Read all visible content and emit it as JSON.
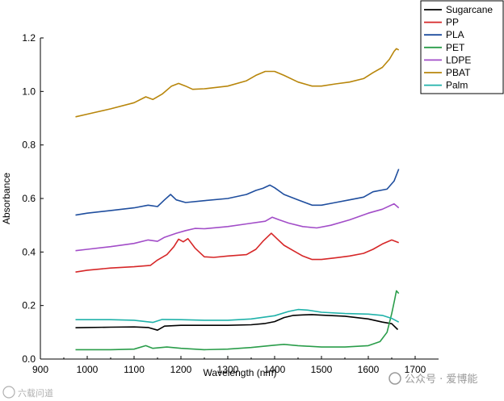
{
  "chart_data": {
    "type": "line",
    "title": "",
    "xlabel": "Wavelength (nm)",
    "ylabel": "Absorbance",
    "xlim": [
      900,
      1750
    ],
    "ylim": [
      0,
      1.2
    ],
    "xticks": [
      900,
      1000,
      1100,
      1200,
      1300,
      1400,
      1500,
      1600,
      1700
    ],
    "yticks": [
      0.0,
      0.2,
      0.4,
      0.6,
      0.8,
      1.0,
      1.2
    ],
    "grid": false,
    "legend_position": "top-right",
    "series": [
      {
        "name": "Sugarcane",
        "color": "#000000",
        "points": [
          [
            975,
            0.117
          ],
          [
            1000,
            0.118
          ],
          [
            1050,
            0.119
          ],
          [
            1100,
            0.12
          ],
          [
            1130,
            0.118
          ],
          [
            1150,
            0.108
          ],
          [
            1165,
            0.123
          ],
          [
            1200,
            0.126
          ],
          [
            1250,
            0.126
          ],
          [
            1300,
            0.126
          ],
          [
            1350,
            0.128
          ],
          [
            1380,
            0.133
          ],
          [
            1400,
            0.14
          ],
          [
            1420,
            0.155
          ],
          [
            1440,
            0.163
          ],
          [
            1460,
            0.165
          ],
          [
            1480,
            0.166
          ],
          [
            1500,
            0.164
          ],
          [
            1550,
            0.16
          ],
          [
            1600,
            0.15
          ],
          [
            1630,
            0.138
          ],
          [
            1650,
            0.132
          ],
          [
            1663,
            0.11
          ]
        ]
      },
      {
        "name": "PP",
        "color": "#d62728",
        "points": [
          [
            975,
            0.325
          ],
          [
            1000,
            0.332
          ],
          [
            1050,
            0.34
          ],
          [
            1100,
            0.345
          ],
          [
            1135,
            0.35
          ],
          [
            1150,
            0.37
          ],
          [
            1170,
            0.39
          ],
          [
            1185,
            0.42
          ],
          [
            1195,
            0.448
          ],
          [
            1205,
            0.438
          ],
          [
            1215,
            0.45
          ],
          [
            1230,
            0.415
          ],
          [
            1250,
            0.382
          ],
          [
            1270,
            0.38
          ],
          [
            1300,
            0.385
          ],
          [
            1340,
            0.39
          ],
          [
            1360,
            0.41
          ],
          [
            1375,
            0.44
          ],
          [
            1393,
            0.47
          ],
          [
            1405,
            0.45
          ],
          [
            1420,
            0.425
          ],
          [
            1440,
            0.405
          ],
          [
            1460,
            0.385
          ],
          [
            1480,
            0.372
          ],
          [
            1500,
            0.372
          ],
          [
            1530,
            0.378
          ],
          [
            1560,
            0.385
          ],
          [
            1590,
            0.395
          ],
          [
            1610,
            0.41
          ],
          [
            1630,
            0.43
          ],
          [
            1650,
            0.445
          ],
          [
            1665,
            0.435
          ]
        ]
      },
      {
        "name": "PLA",
        "color": "#1f4e9e",
        "points": [
          [
            975,
            0.538
          ],
          [
            1000,
            0.545
          ],
          [
            1050,
            0.555
          ],
          [
            1100,
            0.565
          ],
          [
            1130,
            0.575
          ],
          [
            1150,
            0.57
          ],
          [
            1165,
            0.595
          ],
          [
            1178,
            0.615
          ],
          [
            1190,
            0.595
          ],
          [
            1210,
            0.585
          ],
          [
            1250,
            0.592
          ],
          [
            1300,
            0.6
          ],
          [
            1340,
            0.615
          ],
          [
            1360,
            0.63
          ],
          [
            1375,
            0.638
          ],
          [
            1390,
            0.65
          ],
          [
            1400,
            0.64
          ],
          [
            1420,
            0.615
          ],
          [
            1450,
            0.595
          ],
          [
            1480,
            0.575
          ],
          [
            1500,
            0.575
          ],
          [
            1530,
            0.585
          ],
          [
            1560,
            0.595
          ],
          [
            1590,
            0.605
          ],
          [
            1610,
            0.625
          ],
          [
            1640,
            0.635
          ],
          [
            1655,
            0.665
          ],
          [
            1665,
            0.71
          ]
        ]
      },
      {
        "name": "PET",
        "color": "#2a9d4a",
        "points": [
          [
            975,
            0.035
          ],
          [
            1000,
            0.035
          ],
          [
            1050,
            0.035
          ],
          [
            1100,
            0.037
          ],
          [
            1125,
            0.05
          ],
          [
            1140,
            0.04
          ],
          [
            1170,
            0.045
          ],
          [
            1200,
            0.04
          ],
          [
            1250,
            0.035
          ],
          [
            1300,
            0.037
          ],
          [
            1350,
            0.043
          ],
          [
            1400,
            0.052
          ],
          [
            1420,
            0.055
          ],
          [
            1450,
            0.05
          ],
          [
            1500,
            0.045
          ],
          [
            1550,
            0.045
          ],
          [
            1600,
            0.05
          ],
          [
            1625,
            0.065
          ],
          [
            1640,
            0.1
          ],
          [
            1650,
            0.17
          ],
          [
            1656,
            0.22
          ],
          [
            1660,
            0.255
          ],
          [
            1665,
            0.245
          ]
        ]
      },
      {
        "name": "LDPE",
        "color": "#a24dc8",
        "points": [
          [
            975,
            0.405
          ],
          [
            1000,
            0.41
          ],
          [
            1050,
            0.42
          ],
          [
            1100,
            0.432
          ],
          [
            1130,
            0.445
          ],
          [
            1150,
            0.44
          ],
          [
            1165,
            0.455
          ],
          [
            1190,
            0.47
          ],
          [
            1210,
            0.48
          ],
          [
            1230,
            0.488
          ],
          [
            1250,
            0.487
          ],
          [
            1300,
            0.495
          ],
          [
            1340,
            0.505
          ],
          [
            1380,
            0.515
          ],
          [
            1395,
            0.53
          ],
          [
            1410,
            0.52
          ],
          [
            1430,
            0.508
          ],
          [
            1460,
            0.495
          ],
          [
            1490,
            0.49
          ],
          [
            1520,
            0.5
          ],
          [
            1560,
            0.52
          ],
          [
            1600,
            0.545
          ],
          [
            1630,
            0.56
          ],
          [
            1655,
            0.58
          ],
          [
            1665,
            0.565
          ]
        ]
      },
      {
        "name": "PBAT",
        "color": "#b8860b",
        "points": [
          [
            975,
            0.905
          ],
          [
            1000,
            0.915
          ],
          [
            1050,
            0.935
          ],
          [
            1100,
            0.958
          ],
          [
            1125,
            0.98
          ],
          [
            1140,
            0.97
          ],
          [
            1160,
            0.99
          ],
          [
            1180,
            1.02
          ],
          [
            1195,
            1.03
          ],
          [
            1210,
            1.02
          ],
          [
            1225,
            1.008
          ],
          [
            1250,
            1.01
          ],
          [
            1300,
            1.02
          ],
          [
            1340,
            1.04
          ],
          [
            1360,
            1.06
          ],
          [
            1380,
            1.075
          ],
          [
            1400,
            1.075
          ],
          [
            1420,
            1.06
          ],
          [
            1450,
            1.035
          ],
          [
            1480,
            1.02
          ],
          [
            1500,
            1.02
          ],
          [
            1530,
            1.028
          ],
          [
            1560,
            1.035
          ],
          [
            1590,
            1.048
          ],
          [
            1610,
            1.07
          ],
          [
            1630,
            1.09
          ],
          [
            1645,
            1.12
          ],
          [
            1655,
            1.15
          ],
          [
            1660,
            1.16
          ],
          [
            1665,
            1.155
          ]
        ]
      },
      {
        "name": "Palm",
        "color": "#20b2aa",
        "points": [
          [
            975,
            0.147
          ],
          [
            1000,
            0.147
          ],
          [
            1050,
            0.147
          ],
          [
            1100,
            0.145
          ],
          [
            1140,
            0.137
          ],
          [
            1160,
            0.148
          ],
          [
            1200,
            0.147
          ],
          [
            1250,
            0.145
          ],
          [
            1300,
            0.145
          ],
          [
            1350,
            0.15
          ],
          [
            1400,
            0.162
          ],
          [
            1430,
            0.178
          ],
          [
            1450,
            0.185
          ],
          [
            1470,
            0.183
          ],
          [
            1500,
            0.175
          ],
          [
            1550,
            0.17
          ],
          [
            1600,
            0.168
          ],
          [
            1630,
            0.163
          ],
          [
            1650,
            0.152
          ],
          [
            1665,
            0.138
          ]
        ]
      }
    ]
  },
  "watermark": {
    "left": "六载问道",
    "right": "公众号 · 爱博能"
  }
}
